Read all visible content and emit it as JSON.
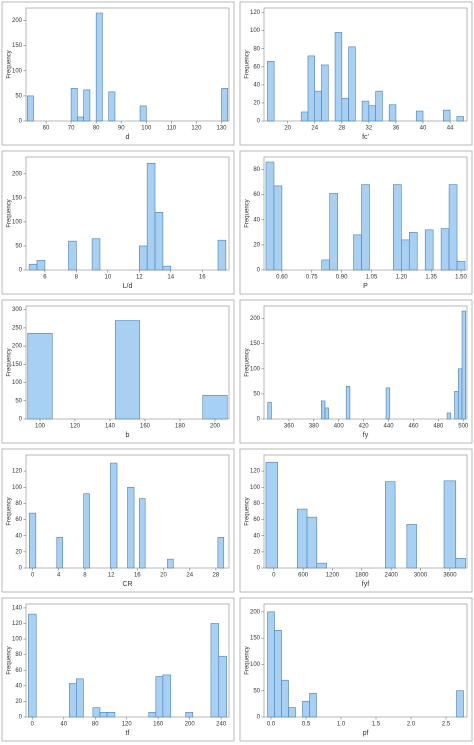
{
  "chart_data": [
    {
      "type": "histogram",
      "x_label": "d",
      "y_label": "Frequency",
      "color": "#a8d0f2",
      "edgecolor": "#4f7fae",
      "bins": [
        52.5,
        55,
        70,
        72.5,
        75,
        77.5,
        80,
        82.5,
        85,
        87.5,
        97.5,
        100,
        130,
        132.5
      ],
      "values": [
        50,
        0,
        65,
        8,
        62,
        0,
        215,
        0,
        58,
        0,
        30,
        0,
        65
      ],
      "xlim": [
        52,
        133
      ],
      "ylim": [
        0,
        225
      ],
      "xticks": [
        60,
        70,
        80,
        90,
        100,
        110,
        120,
        130
      ],
      "yticks": [
        0,
        50,
        100,
        150,
        200
      ]
    },
    {
      "type": "histogram",
      "x_label": "fc'",
      "y_label": "Frequency",
      "color": "#a8d0f2",
      "edgecolor": "#4f7fae",
      "bins": [
        17,
        18,
        22,
        23,
        24,
        25,
        26,
        27,
        28,
        29,
        30,
        31,
        32,
        33,
        34,
        35,
        36,
        39,
        40,
        43,
        44,
        45,
        46
      ],
      "values": [
        66,
        0,
        10,
        72,
        33,
        62,
        0,
        98,
        25,
        82,
        0,
        22,
        17,
        33,
        0,
        18,
        0,
        11,
        0,
        12,
        0,
        5
      ],
      "xlim": [
        16.5,
        46.5
      ],
      "ylim": [
        0,
        125
      ],
      "xticks": [
        20,
        24,
        28,
        32,
        36,
        40,
        44
      ],
      "yticks": [
        0,
        20,
        40,
        60,
        80,
        100,
        120
      ]
    },
    {
      "type": "histogram",
      "x_label": "L/d",
      "y_label": "Frequency",
      "color": "#a8d0f2",
      "edgecolor": "#4f7fae",
      "bins": [
        5,
        5.5,
        6,
        7.5,
        8,
        9,
        9.5,
        12,
        12.5,
        13,
        13.5,
        14,
        17,
        17.5
      ],
      "values": [
        12,
        20,
        0,
        60,
        0,
        65,
        0,
        50,
        222,
        120,
        8,
        0,
        62
      ],
      "xlim": [
        4.8,
        17.7
      ],
      "ylim": [
        0,
        235
      ],
      "xticks": [
        6,
        8,
        10,
        12,
        14,
        16
      ],
      "yticks": [
        0,
        50,
        100,
        150,
        200
      ]
    },
    {
      "type": "histogram",
      "x_label": "P",
      "y_label": "Frequency",
      "color": "#a8d0f2",
      "edgecolor": "#4f7fae",
      "bins": [
        0.52,
        0.56,
        0.6,
        0.8,
        0.84,
        0.88,
        0.96,
        1,
        1.04,
        1.16,
        1.2,
        1.24,
        1.28,
        1.32,
        1.36,
        1.4,
        1.44,
        1.48,
        1.52
      ],
      "values": [
        86,
        67,
        0,
        8,
        61,
        0,
        28,
        68,
        0,
        68,
        24,
        30,
        0,
        32,
        0,
        33,
        68,
        7
      ],
      "xlim": [
        0.51,
        1.53
      ],
      "ylim": [
        0,
        90
      ],
      "xticks": [
        {
          "value": 0.6,
          "label": "0.60"
        },
        0.75,
        {
          "value": 0.9,
          "label": "0.90"
        },
        1.05,
        {
          "value": 1.2,
          "label": "1.20"
        },
        1.35,
        {
          "value": 1.5,
          "label": "1.50"
        }
      ],
      "yticks": [
        0,
        20,
        40,
        60,
        80
      ]
    },
    {
      "type": "histogram",
      "x_label": "b",
      "y_label": "Frequency",
      "color": "#a8d0f2",
      "edgecolor": "#4f7fae",
      "bins": [
        93,
        107,
        143,
        157,
        193,
        207
      ],
      "values": [
        235,
        0,
        270,
        0,
        65
      ],
      "xlim": [
        92,
        208
      ],
      "ylim": [
        0,
        310
      ],
      "xticks": [
        100,
        120,
        140,
        160,
        180,
        200
      ],
      "yticks": [
        0,
        50,
        100,
        150,
        200,
        250,
        300
      ]
    },
    {
      "type": "histogram",
      "x_label": "fy",
      "y_label": "Frequency",
      "color": "#a8d0f2",
      "edgecolor": "#4f7fae",
      "bins": [
        343,
        346,
        386,
        389,
        392,
        406,
        409,
        438,
        441,
        487,
        490,
        493,
        496,
        499,
        502
      ],
      "values": [
        33,
        0,
        36,
        22,
        0,
        65,
        0,
        62,
        0,
        12,
        0,
        55,
        100,
        215
      ],
      "xlim": [
        340,
        503
      ],
      "ylim": [
        0,
        225
      ],
      "xticks": [
        360,
        380,
        400,
        420,
        440,
        460,
        480,
        500
      ],
      "yticks": [
        0,
        50,
        100,
        150,
        200
      ]
    },
    {
      "type": "histogram",
      "x_label": "CR",
      "y_label": "Frequency",
      "color": "#a8d0f2",
      "edgecolor": "#4f7fae",
      "bins": [
        -0.5,
        0.5,
        3.7,
        4.6,
        7.8,
        8.7,
        11.9,
        12.9,
        14.5,
        15.5,
        16.3,
        17.2,
        20.6,
        21.5,
        28.3,
        29.2
      ],
      "values": [
        68,
        0,
        38,
        0,
        92,
        0,
        130,
        0,
        100,
        0,
        86,
        0,
        11,
        0,
        38
      ],
      "xlim": [
        -1,
        30
      ],
      "ylim": [
        0,
        140
      ],
      "xticks": [
        0,
        4,
        8,
        12,
        16,
        20,
        24,
        28
      ],
      "yticks": [
        0,
        20,
        40,
        60,
        80,
        100,
        120
      ]
    },
    {
      "type": "histogram",
      "x_label": "fyf",
      "y_label": "Frequency",
      "color": "#a8d0f2",
      "edgecolor": "#4f7fae",
      "bins": [
        -160,
        80,
        480,
        680,
        880,
        1080,
        2280,
        2480,
        2720,
        2920,
        3480,
        3720,
        3920
      ],
      "values": [
        131,
        0,
        73,
        63,
        6,
        0,
        107,
        0,
        54,
        0,
        108,
        12
      ],
      "xlim": [
        -200,
        3950
      ],
      "ylim": [
        0,
        140
      ],
      "xticks": [
        0,
        600,
        1200,
        1800,
        2400,
        3000,
        3600
      ],
      "yticks": [
        0,
        20,
        40,
        60,
        80,
        100,
        120
      ]
    },
    {
      "type": "histogram",
      "x_label": "tf",
      "y_label": "Frequency",
      "color": "#a8d0f2",
      "edgecolor": "#4f7fae",
      "bins": [
        -5,
        5,
        47,
        56,
        65,
        77,
        86,
        95,
        105,
        148,
        157,
        166,
        176,
        195,
        204,
        227,
        237,
        247
      ],
      "values": [
        132,
        0,
        43,
        49,
        0,
        12,
        6,
        6,
        0,
        6,
        52,
        54,
        0,
        6,
        0,
        120,
        78
      ],
      "xlim": [
        -8,
        250
      ],
      "ylim": [
        0,
        145
      ],
      "xticks": [
        0,
        40,
        80,
        120,
        160,
        200,
        240
      ],
      "yticks": [
        0,
        20,
        40,
        60,
        80,
        100,
        120,
        140
      ]
    },
    {
      "type": "histogram",
      "x_label": "pf",
      "y_label": "Frequency",
      "color": "#a8d0f2",
      "edgecolor": "#4f7fae",
      "bins": [
        -0.05,
        0.05,
        0.15,
        0.25,
        0.35,
        0.45,
        0.55,
        0.65,
        2.65,
        2.75
      ],
      "values": [
        200,
        165,
        70,
        18,
        0,
        30,
        45,
        0,
        50
      ],
      "xlim": [
        -0.1,
        2.8
      ],
      "ylim": [
        0,
        215
      ],
      "xticks": [
        {
          "value": 0,
          "label": "0.0"
        },
        0.5,
        {
          "value": 1,
          "label": "1.0"
        },
        1.5,
        {
          "value": 2,
          "label": "2.0"
        },
        2.5
      ],
      "yticks": [
        0,
        50,
        100,
        150,
        200
      ]
    }
  ]
}
